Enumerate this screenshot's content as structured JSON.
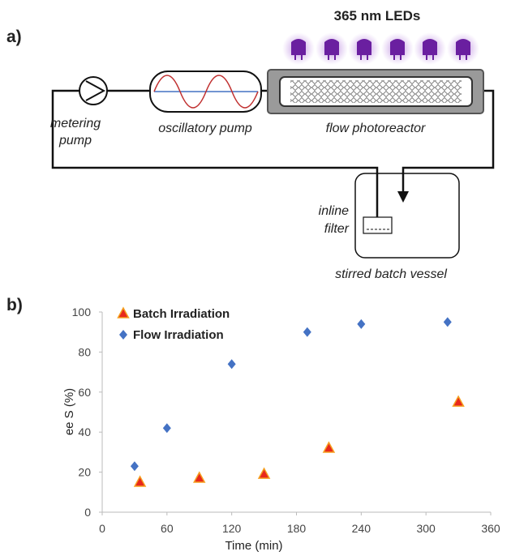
{
  "diagram": {
    "panel_a": "a)",
    "led_label": "365 nm LEDs",
    "metering_pump": [
      "metering",
      "pump"
    ],
    "oscillatory_pump": "oscillatory pump",
    "flow_photoreactor": "flow photoreactor",
    "inline_filter": [
      "inline",
      "filter"
    ],
    "stirred_batch_vessel": "stirred batch vessel",
    "panel_b": "b)"
  },
  "chart_data": {
    "type": "scatter",
    "x_label": "Time (min)",
    "y_label": "ee S (%)",
    "xlim": [
      0,
      360
    ],
    "xticks": [
      0,
      60,
      120,
      180,
      240,
      300,
      360
    ],
    "ylim": [
      0,
      100
    ],
    "yticks": [
      0,
      20,
      40,
      60,
      80,
      100
    ],
    "series": [
      {
        "name": "Batch Irradiation",
        "color": "#e8281c",
        "marker": "triangle",
        "x": [
          35,
          90,
          150,
          210,
          330
        ],
        "values": [
          15,
          17,
          19,
          32,
          55
        ]
      },
      {
        "name": "Flow Irradiation",
        "color": "#4472c4",
        "marker": "diamond",
        "x": [
          30,
          60,
          120,
          190,
          240,
          320
        ],
        "values": [
          23,
          42,
          74,
          90,
          94,
          95
        ]
      }
    ]
  }
}
